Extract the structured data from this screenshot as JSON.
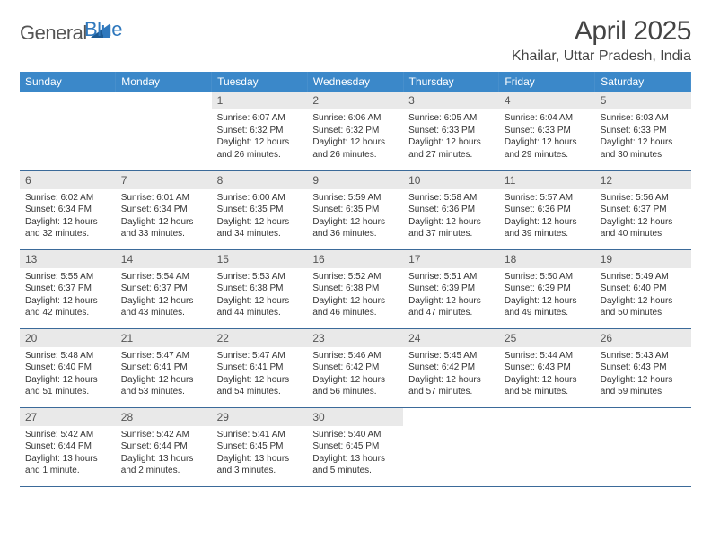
{
  "logo": {
    "text1": "General",
    "text2": "Blue"
  },
  "title": "April 2025",
  "location": "Khailar, Uttar Pradesh, India",
  "header_bg": "#3b88c9",
  "weekdays": [
    "Sunday",
    "Monday",
    "Tuesday",
    "Wednesday",
    "Thursday",
    "Friday",
    "Saturday"
  ],
  "weeks": [
    [
      null,
      null,
      {
        "n": "1",
        "sr": "6:07 AM",
        "ss": "6:32 PM",
        "dl": "12 hours and 26 minutes."
      },
      {
        "n": "2",
        "sr": "6:06 AM",
        "ss": "6:32 PM",
        "dl": "12 hours and 26 minutes."
      },
      {
        "n": "3",
        "sr": "6:05 AM",
        "ss": "6:33 PM",
        "dl": "12 hours and 27 minutes."
      },
      {
        "n": "4",
        "sr": "6:04 AM",
        "ss": "6:33 PM",
        "dl": "12 hours and 29 minutes."
      },
      {
        "n": "5",
        "sr": "6:03 AM",
        "ss": "6:33 PM",
        "dl": "12 hours and 30 minutes."
      }
    ],
    [
      {
        "n": "6",
        "sr": "6:02 AM",
        "ss": "6:34 PM",
        "dl": "12 hours and 32 minutes."
      },
      {
        "n": "7",
        "sr": "6:01 AM",
        "ss": "6:34 PM",
        "dl": "12 hours and 33 minutes."
      },
      {
        "n": "8",
        "sr": "6:00 AM",
        "ss": "6:35 PM",
        "dl": "12 hours and 34 minutes."
      },
      {
        "n": "9",
        "sr": "5:59 AM",
        "ss": "6:35 PM",
        "dl": "12 hours and 36 minutes."
      },
      {
        "n": "10",
        "sr": "5:58 AM",
        "ss": "6:36 PM",
        "dl": "12 hours and 37 minutes."
      },
      {
        "n": "11",
        "sr": "5:57 AM",
        "ss": "6:36 PM",
        "dl": "12 hours and 39 minutes."
      },
      {
        "n": "12",
        "sr": "5:56 AM",
        "ss": "6:37 PM",
        "dl": "12 hours and 40 minutes."
      }
    ],
    [
      {
        "n": "13",
        "sr": "5:55 AM",
        "ss": "6:37 PM",
        "dl": "12 hours and 42 minutes."
      },
      {
        "n": "14",
        "sr": "5:54 AM",
        "ss": "6:37 PM",
        "dl": "12 hours and 43 minutes."
      },
      {
        "n": "15",
        "sr": "5:53 AM",
        "ss": "6:38 PM",
        "dl": "12 hours and 44 minutes."
      },
      {
        "n": "16",
        "sr": "5:52 AM",
        "ss": "6:38 PM",
        "dl": "12 hours and 46 minutes."
      },
      {
        "n": "17",
        "sr": "5:51 AM",
        "ss": "6:39 PM",
        "dl": "12 hours and 47 minutes."
      },
      {
        "n": "18",
        "sr": "5:50 AM",
        "ss": "6:39 PM",
        "dl": "12 hours and 49 minutes."
      },
      {
        "n": "19",
        "sr": "5:49 AM",
        "ss": "6:40 PM",
        "dl": "12 hours and 50 minutes."
      }
    ],
    [
      {
        "n": "20",
        "sr": "5:48 AM",
        "ss": "6:40 PM",
        "dl": "12 hours and 51 minutes."
      },
      {
        "n": "21",
        "sr": "5:47 AM",
        "ss": "6:41 PM",
        "dl": "12 hours and 53 minutes."
      },
      {
        "n": "22",
        "sr": "5:47 AM",
        "ss": "6:41 PM",
        "dl": "12 hours and 54 minutes."
      },
      {
        "n": "23",
        "sr": "5:46 AM",
        "ss": "6:42 PM",
        "dl": "12 hours and 56 minutes."
      },
      {
        "n": "24",
        "sr": "5:45 AM",
        "ss": "6:42 PM",
        "dl": "12 hours and 57 minutes."
      },
      {
        "n": "25",
        "sr": "5:44 AM",
        "ss": "6:43 PM",
        "dl": "12 hours and 58 minutes."
      },
      {
        "n": "26",
        "sr": "5:43 AM",
        "ss": "6:43 PM",
        "dl": "12 hours and 59 minutes."
      }
    ],
    [
      {
        "n": "27",
        "sr": "5:42 AM",
        "ss": "6:44 PM",
        "dl": "13 hours and 1 minute."
      },
      {
        "n": "28",
        "sr": "5:42 AM",
        "ss": "6:44 PM",
        "dl": "13 hours and 2 minutes."
      },
      {
        "n": "29",
        "sr": "5:41 AM",
        "ss": "6:45 PM",
        "dl": "13 hours and 3 minutes."
      },
      {
        "n": "30",
        "sr": "5:40 AM",
        "ss": "6:45 PM",
        "dl": "13 hours and 5 minutes."
      },
      null,
      null,
      null
    ]
  ],
  "labels": {
    "sunrise": "Sunrise:",
    "sunset": "Sunset:",
    "daylight": "Daylight:"
  }
}
